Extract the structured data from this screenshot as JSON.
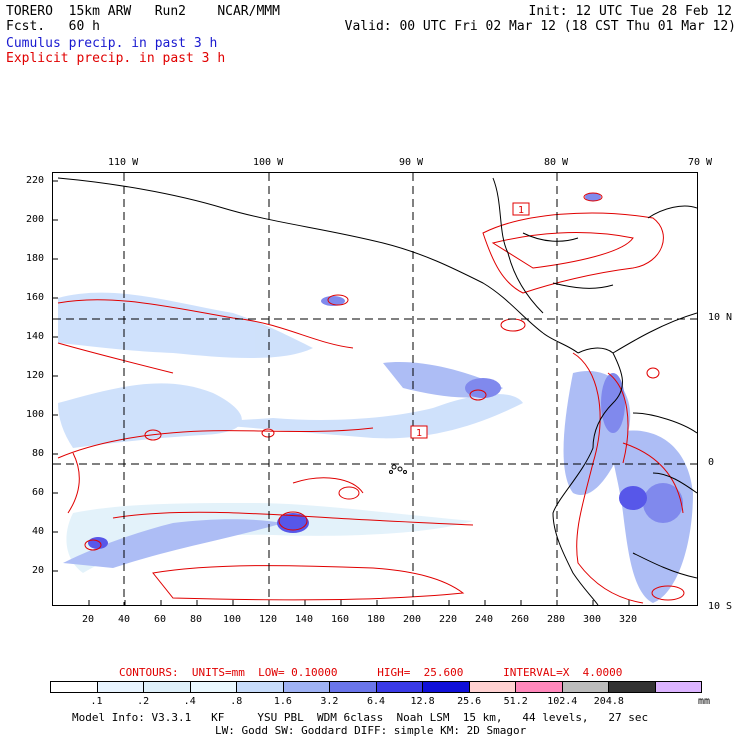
{
  "header": {
    "line1_left": "TORERO  15km ARW   Run2    NCAR/MMM",
    "line1_right": "Init: 12 UTC Tue 28 Feb 12",
    "line2_left": "Fcst.   60 h",
    "line2_right": "Valid: 00 UTC Fri 02 Mar 12 (18 CST Thu 01 Mar 12)",
    "legend_cumulus": "Cumulus precip. in past 3 h",
    "legend_explicit": "Explicit precip. in past 3 h"
  },
  "colors": {
    "cumulus": "#1a1ad0",
    "explicit": "#e00000",
    "scale": [
      "#ffffff",
      "#e8f4ff",
      "#dff0fa",
      "#eaf8ff",
      "#c7dcfb",
      "#9fb2f4",
      "#6a75ea",
      "#3a3ae6",
      "#1010d8",
      "#ffd2d2",
      "#ff88bb",
      "#bcbcbc",
      "#333333",
      "#dcb4ff"
    ]
  },
  "map": {
    "top_lon_labels": [
      "110 W",
      "100 W",
      "90 W",
      "80 W",
      "70 W"
    ],
    "left_y_labels": [
      "220",
      "200",
      "180",
      "160",
      "140",
      "120",
      "100",
      "80",
      "60",
      "40",
      "20"
    ],
    "bottom_x_labels": [
      "20",
      "40",
      "60",
      "80",
      "100",
      "120",
      "140",
      "160",
      "180",
      "200",
      "220",
      "240",
      "260",
      "280",
      "300",
      "320"
    ],
    "right_lat_labels": [
      "10 N",
      "0",
      "10 S"
    ],
    "marker_labels": [
      "1",
      "1"
    ]
  },
  "colorbar": {
    "contours_line": "CONTOURS:  UNITS=mm  LOW= 0.10000      HIGH=  25.600      INTERVAL=X  4.0000",
    "values": [
      ".1",
      ".2",
      ".4",
      ".8",
      "1.6",
      "3.2",
      "6.4",
      "12.8",
      "25.6",
      "51.2",
      "102.4",
      "204.8"
    ],
    "units": "mm"
  },
  "footer": {
    "line1": "Model Info: V3.3.1   KF     YSU PBL  WDM 6class  Noah LSM  15 km,   44 levels,   27 sec",
    "line2": "LW: Godd SW: Goddard DIFF: simple KM: 2D Smagor"
  }
}
